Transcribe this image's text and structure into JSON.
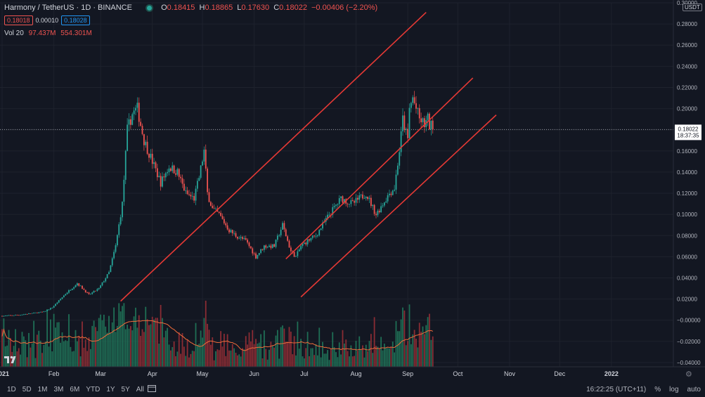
{
  "header": {
    "symbol": "Harmony / TetherUS · 1D · BINANCE",
    "open_label": "O",
    "open": "0.18415",
    "high_label": "H",
    "high": "0.18865",
    "low_label": "L",
    "low": "0.17630",
    "close_label": "C",
    "close": "0.18022",
    "change": "−0.00406 (−2.20%)",
    "bid": "0.18018",
    "spread": "0.00010",
    "ask": "0.18028"
  },
  "volume": {
    "label": "Vol 20",
    "value": "97.437M",
    "ma": "554.301M"
  },
  "price_axis": {
    "currency": "USDT",
    "last_price": "0.18022",
    "countdown": "18:37:35"
  },
  "bottom_bar": {
    "ranges": [
      "1D",
      "5D",
      "1M",
      "3M",
      "6M",
      "YTD",
      "1Y",
      "5Y",
      "All"
    ],
    "time": "16:22:25 (UTC+11)",
    "percent": "%",
    "log": "log",
    "auto": "auto"
  },
  "colors": {
    "up": "#26a69a",
    "down": "#ef5350",
    "channel": "#e53935",
    "bg": "#131722",
    "vol_ma": "#ef6c3a"
  },
  "chart_data": {
    "type": "candlestick",
    "timeframe": "1D",
    "x_ticks": [
      "2021",
      "Feb",
      "Mar",
      "Apr",
      "May",
      "Jun",
      "Jul",
      "Aug",
      "Sep",
      "Oct",
      "Nov",
      "Dec",
      "2022"
    ],
    "y_ticks": [
      "0.30000",
      "0.28000",
      "0.26000",
      "0.24000",
      "0.22000",
      "0.20000",
      "0.18000",
      "0.16000",
      "0.14000",
      "0.12000",
      "0.10000",
      "0.08000",
      "0.06000",
      "0.04000",
      "0.02000",
      "−0.00000",
      "−0.02000",
      "−0.04000"
    ],
    "ylim": [
      -0.044,
      0.3
    ],
    "last_price": 0.18022,
    "price_path_days": [
      0,
      10,
      25,
      30,
      38,
      45,
      52,
      58,
      64,
      68,
      72,
      75,
      78,
      81,
      85,
      90,
      95,
      100,
      105,
      110,
      115,
      118,
      121,
      123,
      126,
      130,
      136,
      140,
      146,
      152,
      157,
      163,
      168,
      173,
      176,
      179,
      183,
      188,
      196,
      203,
      210,
      218,
      224,
      230,
      232,
      235,
      238,
      240,
      243,
      244,
      246,
      248,
      250,
      253,
      255,
      256,
      257,
      258
    ],
    "price_path_values": [
      0.004,
      0.005,
      0.008,
      0.012,
      0.025,
      0.035,
      0.024,
      0.03,
      0.045,
      0.07,
      0.11,
      0.18,
      0.195,
      0.2,
      0.17,
      0.15,
      0.13,
      0.145,
      0.14,
      0.12,
      0.115,
      0.135,
      0.16,
      0.12,
      0.105,
      0.1,
      0.085,
      0.08,
      0.075,
      0.06,
      0.07,
      0.07,
      0.09,
      0.065,
      0.06,
      0.07,
      0.075,
      0.08,
      0.1,
      0.115,
      0.11,
      0.12,
      0.1,
      0.115,
      0.12,
      0.125,
      0.16,
      0.19,
      0.17,
      0.2,
      0.21,
      0.2,
      0.19,
      0.185,
      0.19,
      0.184,
      0.184,
      0.18
    ],
    "trend_lines": [
      {
        "name": "channel-upper",
        "days": [
          71,
          254
        ],
        "values": [
          0.018,
          0.291
        ]
      },
      {
        "name": "channel-middle",
        "days": [
          170,
          282
        ],
        "values": [
          0.058,
          0.229
        ]
      },
      {
        "name": "channel-lower",
        "days": [
          179,
          296
        ],
        "values": [
          0.022,
          0.194
        ]
      }
    ]
  }
}
